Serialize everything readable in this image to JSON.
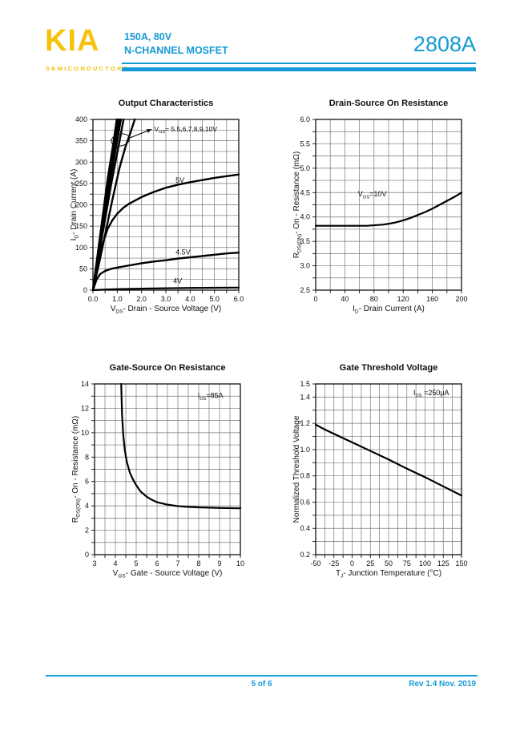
{
  "theme": {
    "cyan": "#149BD5",
    "yellow": "#F5C20D",
    "ink": "#111111"
  },
  "header": {
    "logo_text": "KIA",
    "logo_subtext": "SEMICONDUCTORS",
    "rating_line": "150A,  80V",
    "type_line": "N-CHANNEL MOSFET",
    "part_number": "2808A"
  },
  "footer": {
    "page_indicator": "5 of 6",
    "revision": "Rev 1.4 Nov. 2019"
  },
  "chart_data": [
    {
      "type": "line",
      "title": "Output Characteristics",
      "xlabel": {
        "pre": "V",
        "sub": "DS",
        "post": "- Drain - Source Voltage (V)"
      },
      "ylabel": {
        "pre": "I",
        "sub": "D",
        "post": "- Drain Current (A)"
      },
      "xlim": [
        0,
        6
      ],
      "ylim": [
        0,
        400
      ],
      "xticks": [
        [
          0,
          "0.0"
        ],
        [
          1,
          "1.0"
        ],
        [
          2,
          "2.0"
        ],
        [
          3,
          "3.0"
        ],
        [
          4,
          "4.0"
        ],
        [
          5,
          "5.0"
        ],
        [
          6,
          "6.0"
        ]
      ],
      "yticks": [
        [
          0,
          "0"
        ],
        [
          50,
          "50"
        ],
        [
          100,
          "100"
        ],
        [
          150,
          "150"
        ],
        [
          200,
          "200"
        ],
        [
          250,
          "250"
        ],
        [
          300,
          "300"
        ],
        [
          350,
          "350"
        ],
        [
          400,
          "400"
        ]
      ],
      "xgrid": 0.5,
      "ygrid": 25,
      "grid_on": true,
      "legend": "none",
      "series": [
        {
          "name": "VGS-10V",
          "w": 2.4,
          "points": [
            [
              0,
              0
            ],
            [
              0.3,
              130
            ],
            [
              0.6,
              258
            ],
            [
              0.85,
              348
            ],
            [
              0.98,
              400
            ]
          ]
        },
        {
          "name": "VGS-9V",
          "w": 2.4,
          "points": [
            [
              0,
              0
            ],
            [
              0.3,
              126
            ],
            [
              0.62,
              256
            ],
            [
              0.9,
              352
            ],
            [
              1.03,
              400
            ]
          ]
        },
        {
          "name": "VGS-8V",
          "w": 2.4,
          "points": [
            [
              0,
              0
            ],
            [
              0.32,
              126
            ],
            [
              0.66,
              256
            ],
            [
              0.95,
              352
            ],
            [
              1.09,
              400
            ]
          ]
        },
        {
          "name": "VGS-7V",
          "w": 2.4,
          "points": [
            [
              0,
              0
            ],
            [
              0.34,
              124
            ],
            [
              0.7,
              254
            ],
            [
              1.0,
              350
            ],
            [
              1.15,
              400
            ]
          ]
        },
        {
          "name": "VGS-6V",
          "w": 2.4,
          "points": [
            [
              0,
              0
            ],
            [
              0.36,
              120
            ],
            [
              0.75,
              248
            ],
            [
              1.08,
              345
            ],
            [
              1.26,
              400
            ]
          ]
        },
        {
          "name": "VGS-5.5V",
          "w": 2.4,
          "points": [
            [
              0,
              0
            ],
            [
              0.25,
              62
            ],
            [
              0.5,
              130
            ],
            [
              0.8,
              212
            ],
            [
              1.1,
              288
            ],
            [
              1.35,
              338
            ],
            [
              1.55,
              370
            ],
            [
              1.72,
              400
            ]
          ]
        },
        {
          "name": "VGS-5V",
          "w": 2.4,
          "points": [
            [
              0,
              0
            ],
            [
              0.2,
              58
            ],
            [
              0.4,
              108
            ],
            [
              0.6,
              143
            ],
            [
              0.8,
              164
            ],
            [
              1.0,
              179
            ],
            [
              1.25,
              193
            ],
            [
              1.5,
              203
            ],
            [
              2.0,
              218
            ],
            [
              2.5,
              230
            ],
            [
              3.0,
              240
            ],
            [
              3.5,
              247
            ],
            [
              4.0,
              253
            ],
            [
              4.5,
              258
            ],
            [
              5.0,
              263
            ],
            [
              5.5,
              267
            ],
            [
              6.0,
              271
            ]
          ]
        },
        {
          "name": "VGS-4.5V",
          "w": 2.4,
          "points": [
            [
              0,
              0
            ],
            [
              0.15,
              25
            ],
            [
              0.3,
              38
            ],
            [
              0.5,
              45
            ],
            [
              0.75,
              50
            ],
            [
              1.0,
              53
            ],
            [
              1.5,
              58
            ],
            [
              2.0,
              63
            ],
            [
              2.5,
              67
            ],
            [
              3.0,
              70
            ],
            [
              3.5,
              74
            ],
            [
              4.0,
              77
            ],
            [
              4.5,
              80
            ],
            [
              5.0,
              83
            ],
            [
              5.5,
              86
            ],
            [
              6.0,
              88
            ]
          ]
        },
        {
          "name": "VGS-4V",
          "w": 2.2,
          "points": [
            [
              0,
              0
            ],
            [
              0.5,
              1.5
            ],
            [
              1.0,
              2.5
            ],
            [
              2.0,
              3.5
            ],
            [
              3.0,
              4.5
            ],
            [
              4.0,
              5.2
            ],
            [
              5.0,
              5.6
            ],
            [
              6.0,
              6
            ]
          ]
        }
      ],
      "annotations": [
        {
          "x": 2.52,
          "y": 372,
          "pre": "V",
          "sub": "GS",
          "post": "= 5.5,6,7,8,9,10V",
          "fs": 8.5
        },
        {
          "x": 3.4,
          "y": 252,
          "pre": "5V"
        },
        {
          "x": 3.4,
          "y": 84,
          "pre": "4.5V"
        },
        {
          "x": 3.3,
          "y": 16,
          "pre": "4V"
        }
      ],
      "ellipse": {
        "cx": 1.13,
        "cy": 352,
        "rx": 0.38,
        "ry": 14,
        "rot": -12
      },
      "arrow": {
        "x1": 1.52,
        "y1": 357,
        "x2": 2.42,
        "y2": 377
      }
    },
    {
      "type": "line",
      "title": "Drain-Source On Resistance",
      "xlabel": {
        "pre": "I",
        "sub": "D",
        "post": "- Drain Current (A)"
      },
      "ylabel": {
        "pre": "R",
        "sub": "DS(ON)",
        "post": "- On - Resistance (mΩ)"
      },
      "xlim": [
        0,
        200
      ],
      "ylim": [
        2.5,
        6.0
      ],
      "xticks": [
        [
          0,
          "0"
        ],
        [
          40,
          "40"
        ],
        [
          80,
          "80"
        ],
        [
          120,
          "120"
        ],
        [
          160,
          "160"
        ],
        [
          200,
          "200"
        ]
      ],
      "yticks": [
        [
          2.5,
          "2.5"
        ],
        [
          3.0,
          "3.0"
        ],
        [
          3.5,
          "3.5"
        ],
        [
          4.0,
          "4.0"
        ],
        [
          4.5,
          "4.5"
        ],
        [
          5.0,
          "5.0"
        ],
        [
          5.5,
          "5.5"
        ],
        [
          6.0,
          "6.0"
        ]
      ],
      "xgrid": 20,
      "ygrid": 0.25,
      "grid_on": true,
      "legend": "none",
      "series": [
        {
          "name": "RDSON-vs-ID",
          "w": 2.2,
          "points": [
            [
              0,
              3.82
            ],
            [
              40,
              3.82
            ],
            [
              70,
              3.82
            ],
            [
              90,
              3.84
            ],
            [
              100,
              3.86
            ],
            [
              110,
              3.89
            ],
            [
              120,
              3.93
            ],
            [
              130,
              3.98
            ],
            [
              140,
              4.04
            ],
            [
              150,
              4.1
            ],
            [
              160,
              4.17
            ],
            [
              170,
              4.25
            ],
            [
              180,
              4.33
            ],
            [
              190,
              4.41
            ],
            [
              200,
              4.5
            ]
          ]
        }
      ],
      "annotations": [
        {
          "x": 58,
          "y": 4.42,
          "pre": "V",
          "sub": "GS",
          "post": "=10V"
        }
      ]
    },
    {
      "type": "line",
      "title": "Gate-Source On Resistance",
      "xlabel": {
        "pre": "V",
        "sub": "GS",
        "post": "- Gate - Source Voltage (V)"
      },
      "ylabel": {
        "pre": "R",
        "sub": "DS(ON)",
        "post": "- On - Resistance (mΩ)"
      },
      "xlim": [
        3,
        10
      ],
      "ylim": [
        0,
        14
      ],
      "xticks": [
        [
          3,
          "3"
        ],
        [
          4,
          "4"
        ],
        [
          5,
          "5"
        ],
        [
          6,
          "6"
        ],
        [
          7,
          "7"
        ],
        [
          8,
          "8"
        ],
        [
          9,
          "9"
        ],
        [
          10,
          "10"
        ]
      ],
      "yticks": [
        [
          0,
          "0"
        ],
        [
          2,
          "2"
        ],
        [
          4,
          "4"
        ],
        [
          6,
          "6"
        ],
        [
          8,
          "8"
        ],
        [
          10,
          "10"
        ],
        [
          12,
          "12"
        ],
        [
          14,
          "14"
        ]
      ],
      "xgrid": 0.5,
      "ygrid": 1,
      "grid_on": true,
      "legend": "none",
      "series": [
        {
          "name": "RDSON-vs-VGS",
          "w": 2.2,
          "points": [
            [
              4.28,
              14
            ],
            [
              4.32,
              11.5
            ],
            [
              4.38,
              9.8
            ],
            [
              4.45,
              8.6
            ],
            [
              4.55,
              7.6
            ],
            [
              4.7,
              6.7
            ],
            [
              4.85,
              6.15
            ],
            [
              5.0,
              5.7
            ],
            [
              5.2,
              5.2
            ],
            [
              5.5,
              4.75
            ],
            [
              5.75,
              4.5
            ],
            [
              6.0,
              4.3
            ],
            [
              6.5,
              4.1
            ],
            [
              7.0,
              3.98
            ],
            [
              7.5,
              3.92
            ],
            [
              8.0,
              3.88
            ],
            [
              9.0,
              3.83
            ],
            [
              10,
              3.8
            ]
          ]
        }
      ],
      "annotations": [
        {
          "x": 7.95,
          "y": 12.85,
          "pre": "I",
          "sub": "DS",
          "post": "=85A"
        }
      ]
    },
    {
      "type": "line",
      "title": "Gate Threshold Voltage",
      "xlabel": {
        "pre": "T",
        "sub": "J",
        "post": "- Junction Temperature (°C)"
      },
      "ylabel": {
        "pre": "Normalized Threshold Voltage"
      },
      "xlim": [
        -50,
        150
      ],
      "ylim": [
        0.2,
        1.5
      ],
      "xticks": [
        [
          -50,
          "-50"
        ],
        [
          -25,
          "-25"
        ],
        [
          0,
          "0"
        ],
        [
          25,
          "25"
        ],
        [
          50,
          "50"
        ],
        [
          75,
          "75"
        ],
        [
          100,
          "100"
        ],
        [
          125,
          "125"
        ],
        [
          150,
          "150"
        ]
      ],
      "yticks": [
        [
          0.2,
          "0.2"
        ],
        [
          0.4,
          "0.4"
        ],
        [
          0.6,
          "0.6"
        ],
        [
          0.8,
          "0.8"
        ],
        [
          1.0,
          "1.0"
        ],
        [
          1.2,
          "1.2"
        ],
        [
          1.4,
          "1.4"
        ],
        [
          1.5,
          "1.5"
        ]
      ],
      "xgrid": 12.5,
      "ygrid": 0.1,
      "grid_on": true,
      "legend": "none",
      "series": [
        {
          "name": "normalized-vth",
          "w": 2.2,
          "points": [
            [
              -50,
              1.19
            ],
            [
              -40,
              1.16
            ],
            [
              -25,
              1.12
            ],
            [
              0,
              1.055
            ],
            [
              25,
              0.99
            ],
            [
              50,
              0.925
            ],
            [
              75,
              0.855
            ],
            [
              100,
              0.79
            ],
            [
              125,
              0.72
            ],
            [
              150,
              0.65
            ]
          ]
        }
      ],
      "annotations": [
        {
          "x": 84,
          "y": 1.415,
          "pre": "I",
          "sub": "DS",
          "post": " =250μA"
        }
      ]
    }
  ]
}
